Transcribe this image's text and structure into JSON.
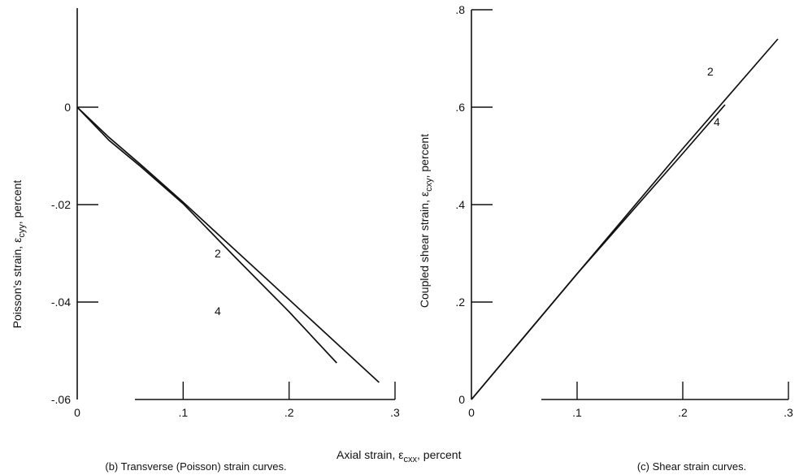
{
  "shared_xlabel": "Axial strain, εcxx, percent",
  "shared_xlabel_parts": {
    "pre": "Axial strain, ",
    "sym": "ε",
    "sub": "cxx",
    "post": ", percent"
  },
  "chart_data": [
    {
      "type": "line",
      "caption": "(b) Transverse (Poisson) strain curves.",
      "xlabel": "Axial strain, εcxx, percent",
      "ylabel": "Poisson's strain, εcyy, percent",
      "ylabel_parts": {
        "pre": "Poisson's strain, ",
        "sym": "ε",
        "sub": "cyy",
        "post": ", percent"
      },
      "xlim": [
        0,
        0.3
      ],
      "ylim": [
        -0.06,
        0.02
      ],
      "x_ticks": [
        {
          "v": 0,
          "label": "0"
        },
        {
          "v": 0.1,
          "label": ".1"
        },
        {
          "v": 0.2,
          "label": ".2"
        },
        {
          "v": 0.3,
          "label": ".3"
        }
      ],
      "y_ticks": [
        {
          "v": 0,
          "label": "0"
        },
        {
          "v": -0.02,
          "label": "-.02"
        },
        {
          "v": -0.04,
          "label": "-.04"
        },
        {
          "v": -0.06,
          "label": "-.06"
        }
      ],
      "grid": false,
      "series": [
        {
          "name": "2",
          "x": [
            0,
            0.03,
            0.06,
            0.1,
            0.15,
            0.2,
            0.25,
            0.285
          ],
          "y": [
            0,
            -0.0062,
            -0.0118,
            -0.0195,
            -0.0295,
            -0.0395,
            -0.0495,
            -0.0565
          ]
        },
        {
          "name": "4",
          "x": [
            0,
            0.03,
            0.06,
            0.1,
            0.15,
            0.2,
            0.245
          ],
          "y": [
            0,
            -0.0068,
            -0.0122,
            -0.0198,
            -0.031,
            -0.042,
            -0.0525
          ]
        }
      ]
    },
    {
      "type": "line",
      "caption": "(c) Shear strain curves.",
      "xlabel": "Axial strain, εcxx, percent",
      "ylabel": "Coupled shear strain, εcxy, percent",
      "ylabel_parts": {
        "pre": "Coupled shear strain, ",
        "sym": "ε",
        "sub": "cxy",
        "post": ", percent"
      },
      "xlim": [
        0,
        0.3
      ],
      "ylim": [
        0,
        0.8
      ],
      "x_ticks": [
        {
          "v": 0,
          "label": "0"
        },
        {
          "v": 0.1,
          "label": ".1"
        },
        {
          "v": 0.2,
          "label": ".2"
        },
        {
          "v": 0.3,
          "label": ".3"
        }
      ],
      "y_ticks": [
        {
          "v": 0,
          "label": "0"
        },
        {
          "v": 0.2,
          "label": ".2"
        },
        {
          "v": 0.4,
          "label": ".4"
        },
        {
          "v": 0.6,
          "label": ".6"
        },
        {
          "v": 0.8,
          "label": ".8"
        }
      ],
      "grid": false,
      "series": [
        {
          "name": "2",
          "x": [
            0,
            0.1,
            0.2,
            0.29
          ],
          "y": [
            0,
            0.258,
            0.515,
            0.74
          ]
        },
        {
          "name": "4",
          "x": [
            0,
            0.1,
            0.2,
            0.24
          ],
          "y": [
            0,
            0.258,
            0.505,
            0.605
          ]
        }
      ]
    }
  ]
}
